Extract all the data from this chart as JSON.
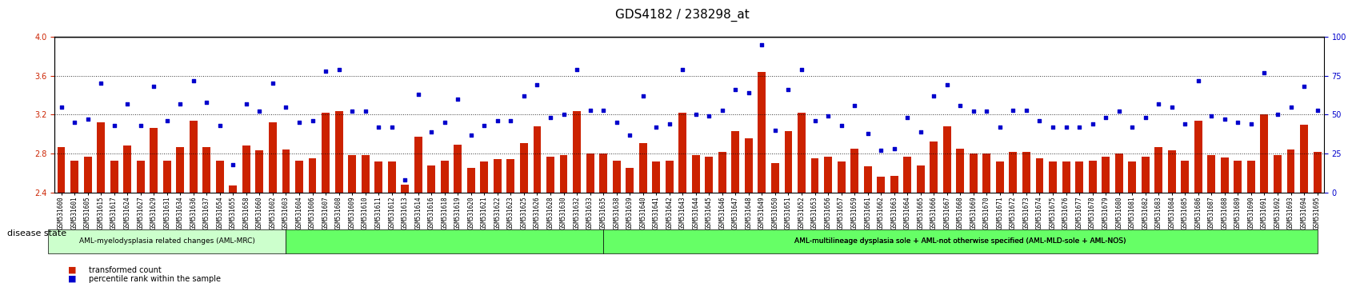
{
  "title": "GDS4182 / 238298_at",
  "ylim_left": [
    2.4,
    4.0
  ],
  "ylim_right": [
    0,
    100
  ],
  "yticks_left": [
    2.4,
    2.8,
    3.2,
    3.6,
    4.0
  ],
  "yticks_right": [
    0,
    25,
    50,
    75,
    100
  ],
  "bar_color": "#cc2200",
  "dot_color": "#0000cc",
  "baseline": 2.4,
  "categories": [
    "GSM531600",
    "GSM531601",
    "GSM531605",
    "GSM531615",
    "GSM531617",
    "GSM531624",
    "GSM531627",
    "GSM531629",
    "GSM531631",
    "GSM531634",
    "GSM531636",
    "GSM531637",
    "GSM531654",
    "GSM531655",
    "GSM531658",
    "GSM531660",
    "GSM531602",
    "GSM531603",
    "GSM531604",
    "GSM531606",
    "GSM531607",
    "GSM531608",
    "GSM531609",
    "GSM531610",
    "GSM531611",
    "GSM531612",
    "GSM531613",
    "GSM531614",
    "GSM531616",
    "GSM531618",
    "GSM531619",
    "GSM531620",
    "GSM531621",
    "GSM531622",
    "GSM531623",
    "GSM531625",
    "GSM531626",
    "GSM531628",
    "GSM531630",
    "GSM531632",
    "GSM531633",
    "GSM531635",
    "GSM531638",
    "GSM531639",
    "GSM531640",
    "GSM531641",
    "GSM531642",
    "GSM531643",
    "GSM531644",
    "GSM531645",
    "GSM531646",
    "GSM531647",
    "GSM531648",
    "GSM531649",
    "GSM531650",
    "GSM531651",
    "GSM531652",
    "GSM531653",
    "GSM531656",
    "GSM531657",
    "GSM531659",
    "GSM531661",
    "GSM531662",
    "GSM531663",
    "GSM531664",
    "GSM531665",
    "GSM531666",
    "GSM531667",
    "GSM531668",
    "GSM531669",
    "GSM531670",
    "GSM531671",
    "GSM531672",
    "GSM531673",
    "GSM531674",
    "GSM531675",
    "GSM531676",
    "GSM531677",
    "GSM531678",
    "GSM531679",
    "GSM531680",
    "GSM531681",
    "GSM531682",
    "GSM531683",
    "GSM531684",
    "GSM531685",
    "GSM531686",
    "GSM531687",
    "GSM531688",
    "GSM531689",
    "GSM531690",
    "GSM531691",
    "GSM531692",
    "GSM531693",
    "GSM531694",
    "GSM531695"
  ],
  "values": [
    2.87,
    2.73,
    2.77,
    3.12,
    2.73,
    2.88,
    2.73,
    3.06,
    2.73,
    2.87,
    3.14,
    2.87,
    2.73,
    2.47,
    2.88,
    2.83,
    3.12,
    2.84,
    2.73,
    2.75,
    3.22,
    3.24,
    2.78,
    2.78,
    2.72,
    2.72,
    2.48,
    2.97,
    2.68,
    2.73,
    2.89,
    2.65,
    2.72,
    2.74,
    2.74,
    2.91,
    3.08,
    2.77,
    2.78,
    3.24,
    2.8,
    2.8,
    2.73,
    2.65,
    2.91,
    2.72,
    2.73,
    3.22,
    2.78,
    2.77,
    2.82,
    3.03,
    2.96,
    3.64,
    2.7,
    3.03,
    3.22,
    2.75,
    2.77,
    2.72,
    2.85,
    2.67,
    2.56,
    2.57,
    2.77,
    2.68,
    2.92,
    3.08,
    2.85,
    2.8,
    2.8,
    2.72,
    2.82,
    2.82,
    2.75,
    2.72,
    2.72,
    2.72,
    2.73,
    2.77,
    2.8,
    2.72,
    2.77,
    2.87,
    2.83,
    2.73,
    3.14,
    2.78,
    2.76,
    2.73,
    2.73,
    3.2,
    2.78,
    2.84,
    3.1,
    2.82
  ],
  "percentiles": [
    55,
    45,
    47,
    70,
    43,
    57,
    43,
    68,
    46,
    57,
    72,
    58,
    43,
    18,
    57,
    52,
    70,
    55,
    45,
    46,
    78,
    79,
    52,
    52,
    42,
    42,
    8,
    63,
    39,
    45,
    60,
    37,
    43,
    46,
    46,
    62,
    69,
    48,
    50,
    79,
    53,
    53,
    45,
    37,
    62,
    42,
    44,
    79,
    50,
    49,
    53,
    66,
    64,
    95,
    40,
    66,
    79,
    46,
    49,
    43,
    56,
    38,
    27,
    28,
    48,
    39,
    62,
    69,
    56,
    52,
    52,
    42,
    53,
    53,
    46,
    42,
    42,
    42,
    44,
    48,
    52,
    42,
    48,
    57,
    55,
    44,
    72,
    49,
    47,
    45,
    44,
    77,
    50,
    55,
    68,
    53
  ],
  "group_boundaries": [
    18,
    42
  ],
  "group_labels": [
    "AML-myelodysplasia related changes (AML-MRC)",
    "AML-multilineage dysplasia sole + AML-not otherwise specified (AML-MLD-sole + AML-NOS)"
  ],
  "group_colors": [
    "#ccffcc",
    "#66ff66"
  ],
  "background_color": "#ffffff",
  "tick_color_left": "#cc2200",
  "tick_color_right": "#0000cc"
}
